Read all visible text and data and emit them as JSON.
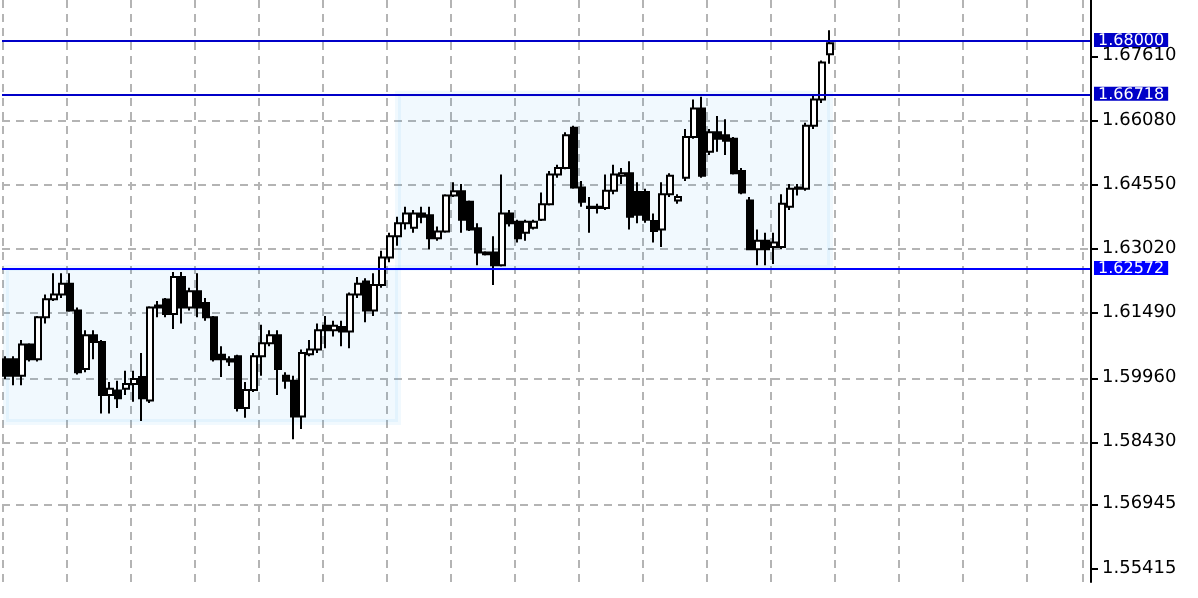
{
  "chart_data": {
    "type": "candlestick",
    "categories": [
      null,
      null,
      null,
      null,
      null,
      null,
      null,
      null,
      null,
      null,
      null,
      null,
      null,
      null,
      null,
      null,
      null,
      null,
      null,
      null,
      null,
      null,
      null,
      null,
      null,
      null,
      null,
      null,
      null,
      null,
      null,
      null,
      null,
      null,
      null,
      null,
      null,
      null,
      null,
      null,
      null,
      null,
      null,
      null,
      null,
      null,
      null,
      null,
      null,
      null,
      null,
      null,
      null,
      null,
      null,
      null,
      null,
      null,
      null,
      null,
      null,
      null,
      null,
      null,
      null,
      null,
      null,
      null,
      null,
      null,
      null,
      null,
      null,
      null,
      null,
      null,
      null,
      null,
      null,
      null,
      null,
      null,
      null,
      null,
      null,
      null,
      null,
      null,
      null,
      null,
      null,
      null,
      null,
      null,
      null,
      null,
      null,
      null,
      null,
      null,
      null,
      null,
      null,
      null,
      null,
      null,
      null,
      null,
      null,
      null,
      null,
      null,
      null,
      null,
      null,
      null,
      null,
      null,
      null,
      null,
      null,
      null,
      null,
      null,
      null,
      null,
      null,
      null,
      null,
      null,
      null,
      null,
      null,
      null,
      null,
      null
    ],
    "ohlc": [
      [
        1.604,
        1.6047,
        1.5993,
        1.6001
      ],
      [
        1.604,
        1.6047,
        1.5978,
        1.6001
      ],
      [
        1.6001,
        1.6086,
        1.5978,
        1.6075
      ],
      [
        1.6075,
        1.6078,
        1.6035,
        1.604
      ],
      [
        1.604,
        1.6143,
        1.6035,
        1.614
      ],
      [
        1.614,
        1.6194,
        1.6125,
        1.6183
      ],
      [
        1.6183,
        1.6245,
        1.6179,
        1.6194
      ],
      [
        1.6194,
        1.6245,
        1.6186,
        1.622
      ],
      [
        1.622,
        1.6245,
        1.6153,
        1.6156
      ],
      [
        1.6156,
        1.6163,
        1.6004,
        1.6009
      ],
      [
        1.6017,
        1.6109,
        1.6009,
        1.6097
      ],
      [
        1.6097,
        1.6109,
        1.604,
        1.6081
      ],
      [
        1.6081,
        1.6086,
        1.5911,
        1.5955
      ],
      [
        1.5955,
        1.5986,
        1.5911,
        1.597
      ],
      [
        1.5966,
        1.5989,
        1.5924,
        1.5947
      ],
      [
        1.597,
        1.6013,
        1.5955,
        1.5981
      ],
      [
        1.5981,
        1.6013,
        1.5939,
        1.5993
      ],
      [
        1.5998,
        1.6055,
        1.5893,
        1.5947
      ],
      [
        1.5942,
        1.6166,
        1.5936,
        1.6163
      ],
      [
        1.6163,
        1.6179,
        1.614,
        1.6168
      ],
      [
        1.6182,
        1.6186,
        1.614,
        1.6148
      ],
      [
        1.6148,
        1.6248,
        1.6112,
        1.6236
      ],
      [
        1.6236,
        1.6248,
        1.6125,
        1.6163
      ],
      [
        1.6163,
        1.621,
        1.6156,
        1.6202
      ],
      [
        1.6202,
        1.6245,
        1.614,
        1.6163
      ],
      [
        1.6174,
        1.6186,
        1.6132,
        1.614
      ],
      [
        1.614,
        1.6143,
        1.6035,
        1.604
      ],
      [
        1.6051,
        1.6071,
        1.5998,
        1.604
      ],
      [
        1.604,
        1.6047,
        1.6024,
        1.6035
      ],
      [
        1.6047,
        1.6051,
        1.5916,
        1.5924
      ],
      [
        1.5924,
        1.5986,
        1.5901,
        1.5967
      ],
      [
        1.5967,
        1.6055,
        1.5962,
        1.6047
      ],
      [
        1.6047,
        1.6122,
        1.6001,
        1.6078
      ],
      [
        1.6078,
        1.6109,
        1.6071,
        1.6097
      ],
      [
        1.6097,
        1.6109,
        1.5955,
        1.6017
      ],
      [
        1.6001,
        1.6009,
        1.597,
        1.5989
      ],
      [
        1.5989,
        1.6001,
        1.585,
        1.5904
      ],
      [
        1.5904,
        1.6063,
        1.5874,
        1.6055
      ],
      [
        1.6052,
        1.6086,
        1.6047,
        1.6063
      ],
      [
        1.6063,
        1.6125,
        1.6055,
        1.6109
      ],
      [
        1.612,
        1.6143,
        1.6066,
        1.6109
      ],
      [
        1.6109,
        1.6132,
        1.6094,
        1.612
      ],
      [
        1.6117,
        1.6132,
        1.6071,
        1.6106
      ],
      [
        1.6106,
        1.6199,
        1.6066,
        1.6194
      ],
      [
        1.6194,
        1.6236,
        1.6186,
        1.622
      ],
      [
        1.6225,
        1.6233,
        1.6128,
        1.6156
      ],
      [
        1.6156,
        1.6245,
        1.6143,
        1.6217
      ],
      [
        1.6217,
        1.6298,
        1.621,
        1.6282
      ],
      [
        1.6282,
        1.6341,
        1.6271,
        1.6333
      ],
      [
        1.6333,
        1.6379,
        1.631,
        1.6364
      ],
      [
        1.6364,
        1.6403,
        1.6349,
        1.6387
      ],
      [
        1.6353,
        1.6395,
        1.6341,
        1.6387
      ],
      [
        1.6387,
        1.6403,
        1.6364,
        1.6379
      ],
      [
        1.6383,
        1.6403,
        1.6302,
        1.6328
      ],
      [
        1.6328,
        1.6356,
        1.6322,
        1.6344
      ],
      [
        1.6344,
        1.6433,
        1.6341,
        1.643
      ],
      [
        1.643,
        1.6461,
        1.6426,
        1.644
      ],
      [
        1.644,
        1.6457,
        1.6341,
        1.6372
      ],
      [
        1.6415,
        1.6418,
        1.6345,
        1.6349
      ],
      [
        1.6352,
        1.6364,
        1.6264,
        1.6294
      ],
      [
        1.6294,
        1.6297,
        1.6287,
        1.629
      ],
      [
        1.6294,
        1.6333,
        1.6217,
        1.6264
      ],
      [
        1.6264,
        1.648,
        1.6261,
        1.6387
      ],
      [
        1.6387,
        1.6395,
        1.6356,
        1.6364
      ],
      [
        1.6367,
        1.6372,
        1.6318,
        1.6328
      ],
      [
        1.6341,
        1.6372,
        1.6322,
        1.6367
      ],
      [
        1.6353,
        1.6372,
        1.6349,
        1.6367
      ],
      [
        1.6372,
        1.6437,
        1.6369,
        1.6409
      ],
      [
        1.6409,
        1.6488,
        1.6406,
        1.648
      ],
      [
        1.648,
        1.6503,
        1.6472,
        1.6495
      ],
      [
        1.6495,
        1.658,
        1.6492,
        1.6573
      ],
      [
        1.6591,
        1.6596,
        1.6446,
        1.6449
      ],
      [
        1.6449,
        1.6464,
        1.6403,
        1.6415
      ],
      [
        1.6403,
        1.6426,
        1.6341,
        1.64
      ],
      [
        1.64,
        1.641,
        1.6387,
        1.6403
      ],
      [
        1.64,
        1.648,
        1.6395,
        1.6441
      ],
      [
        1.6441,
        1.6503,
        1.6433,
        1.648
      ],
      [
        1.6477,
        1.6495,
        1.6457,
        1.6483
      ],
      [
        1.6483,
        1.6511,
        1.6349,
        1.6379
      ],
      [
        1.6438,
        1.6461,
        1.6364,
        1.6384
      ],
      [
        1.6438,
        1.6446,
        1.6365,
        1.6372
      ],
      [
        1.6369,
        1.6387,
        1.6318,
        1.6345
      ],
      [
        1.6349,
        1.6461,
        1.6307,
        1.6433
      ],
      [
        1.6433,
        1.6483,
        1.6426,
        1.6477
      ],
      [
        1.6418,
        1.6433,
        1.641,
        1.6426
      ],
      [
        1.6472,
        1.6588,
        1.6464,
        1.6569
      ],
      [
        1.6569,
        1.6658,
        1.6565,
        1.6637
      ],
      [
        1.6637,
        1.6665,
        1.6472,
        1.6477
      ],
      [
        1.6534,
        1.6588,
        1.6526,
        1.658
      ],
      [
        1.658,
        1.6619,
        1.6534,
        1.6565
      ],
      [
        1.6573,
        1.6611,
        1.6526,
        1.656
      ],
      [
        1.6565,
        1.6569,
        1.648,
        1.6483
      ],
      [
        1.6488,
        1.6495,
        1.6433,
        1.6437
      ],
      [
        1.6418,
        1.6426,
        1.6302,
        1.6302
      ],
      [
        1.6302,
        1.6349,
        1.6264,
        1.6322
      ],
      [
        1.6322,
        1.6341,
        1.6264,
        1.6302
      ],
      [
        1.6307,
        1.6341,
        1.6267,
        1.6318
      ],
      [
        1.6307,
        1.6433,
        1.6302,
        1.641
      ],
      [
        1.6403,
        1.6457,
        1.6395,
        1.6446
      ],
      [
        1.6446,
        1.6457,
        1.643,
        1.6449
      ],
      [
        1.6446,
        1.6603,
        1.6441,
        1.6596
      ],
      [
        1.6596,
        1.6668,
        1.6588,
        1.6658
      ],
      [
        1.6658,
        1.6751,
        1.665,
        1.6746
      ],
      [
        1.6766,
        1.6823,
        1.6743,
        1.6792
      ],
      null,
      null,
      null,
      null,
      null,
      null,
      null,
      null,
      null,
      null,
      null,
      null,
      null,
      null,
      null,
      null,
      null,
      null,
      null,
      null,
      null,
      null,
      null,
      null,
      null,
      null,
      null,
      null,
      null,
      null,
      null,
      null
    ],
    "ylim": [
      1.551,
      1.6895
    ],
    "yticks": [
      {
        "value": 1.55415,
        "label": "1.55415"
      },
      {
        "value": 1.56945,
        "label": "1.56945"
      },
      {
        "value": 1.5843,
        "label": "1.58430"
      },
      {
        "value": 1.5996,
        "label": "1.59960"
      },
      {
        "value": 1.6149,
        "label": "1.61490"
      },
      {
        "value": 1.6302,
        "label": "1.63020"
      },
      {
        "value": 1.6455,
        "label": "1.64550"
      },
      {
        "value": 1.6608,
        "label": "1.66080"
      },
      {
        "value": 1.6761,
        "label": "1.67610"
      }
    ],
    "ref_lines": [
      {
        "axis": "y",
        "value": 1.68,
        "label": "1.68000",
        "color": "#0000c8"
      },
      {
        "axis": "y",
        "value": 1.66718,
        "label": "1.66718",
        "color": "#0000c8"
      },
      {
        "axis": "y",
        "value": 1.62572,
        "label": "1.62572",
        "color": "#0000ff"
      }
    ],
    "bands": [
      {
        "axis": "y",
        "from": 1.5891,
        "to": 1.62572,
        "color": "#14a0e6"
      },
      {
        "axis": "y",
        "from": 1.62572,
        "to": 1.66718,
        "color": "#14a0e6"
      }
    ],
    "grid": true
  }
}
